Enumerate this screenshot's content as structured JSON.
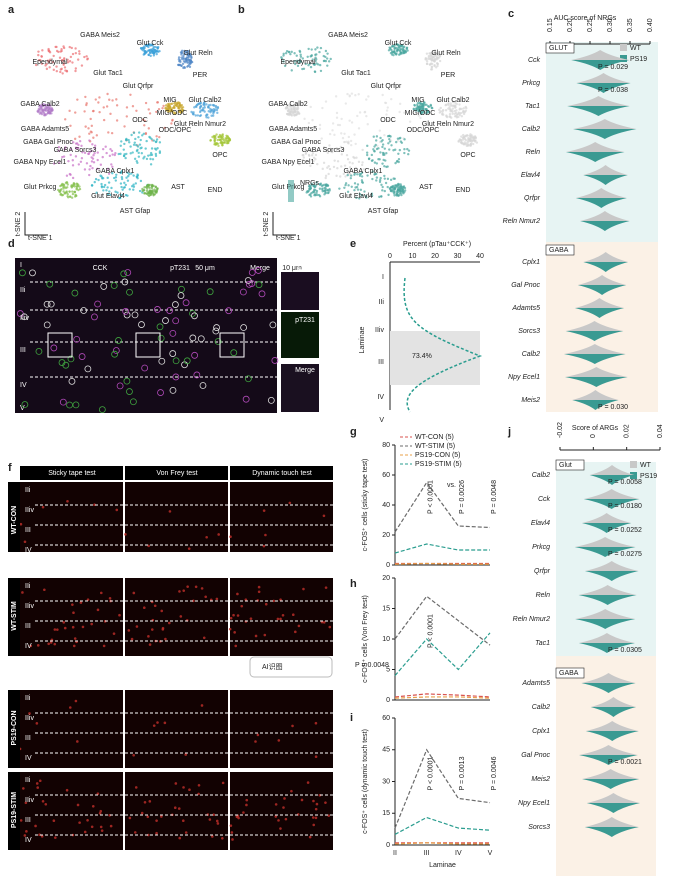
{
  "panels": {
    "a": {
      "label": "a",
      "clusters": [
        "GABA Meis2",
        "Glut Cck",
        "Ependymal",
        "Glut Reln",
        "Glut Tac1",
        "Glut Qrfpr",
        "PER",
        "MIG",
        "Glut Calb2",
        "MIG/ODC",
        "Glut Reln Nmur2",
        "ODC/OPC",
        "GABA Calb2",
        "ODC",
        "GABA Adamts5",
        "GABA Gal Pnoc",
        "GABA Sorcs3",
        "OPC",
        "GABA Npy Ecel1",
        "GABA Cplx1",
        "END",
        "Glut Prkcg",
        "Glut Elavl4",
        "AST",
        "AST Gfap"
      ],
      "axis_y": "t-SNE 2",
      "axis_x": "t-SNE 1"
    },
    "b": {
      "label": "b",
      "clusters": [
        "GABA Meis2",
        "Glut Cck",
        "Ependymal",
        "Glut Reln",
        "Glut Tac1",
        "Glut Qrfpr",
        "PER",
        "MIG",
        "Glut Calb2",
        "MIG/ODC",
        "Glut Reln Nmur2",
        "ODC/OPC",
        "GABA Calb2",
        "ODC",
        "GABA Adamts5",
        "GABA Gal Pnoc",
        "GABA Sorcs3",
        "OPC",
        "GABA Npy Ecel1",
        "GABA Cplx1",
        "END",
        "Glut Prkcg",
        "Glut Elavl4",
        "AST",
        "AST Gfap"
      ],
      "axis_y": "t-SNE 2",
      "axis_x": "t-SNE 1",
      "colorbar": "NRGs"
    },
    "c": {
      "label": "c",
      "title": "AUC score of NRGs",
      "ticks": [
        "0.15",
        "0.20",
        "0.25",
        "0.30",
        "0.35",
        "0.40"
      ],
      "legend": [
        "WT",
        "PS19"
      ],
      "groups": [
        {
          "name": "GLUT",
          "rows": [
            {
              "gene": "Cck",
              "p": "P = 0.029"
            },
            {
              "gene": "Prkcg",
              "p": "P = 0.038"
            },
            {
              "gene": "Tac1"
            },
            {
              "gene": "Calb2"
            },
            {
              "gene": "Reln"
            },
            {
              "gene": "Elavl4"
            },
            {
              "gene": "Qrfpr"
            },
            {
              "gene": "Reln Nmur2"
            }
          ]
        },
        {
          "name": "GABA",
          "rows": [
            {
              "gene": "Cplx1"
            },
            {
              "gene": "Gal Pnoc"
            },
            {
              "gene": "Adamts5"
            },
            {
              "gene": "Sorcs3"
            },
            {
              "gene": "Calb2"
            },
            {
              "gene": "Npy Ecel1"
            },
            {
              "gene": "Meis2",
              "p": "P = 0.030"
            }
          ]
        }
      ]
    },
    "d": {
      "label": "d",
      "channels": [
        "CCK",
        "pT231",
        "Merge"
      ],
      "scale": "50 μm",
      "inset_scale": "10 μm",
      "inset_channels": [
        "CCK",
        "pT231",
        "Merge"
      ],
      "laminae": [
        "I",
        "IIi",
        "IIiv",
        "III",
        "IV",
        "V"
      ]
    },
    "e": {
      "label": "e",
      "title": "Percent (pTau⁺CCK⁺)",
      "ticks": [
        "0",
        "10",
        "20",
        "30",
        "40"
      ],
      "ylabel": "Laminae",
      "laminae": [
        "I",
        "IIi",
        "IIiv",
        "III",
        "IV",
        "V"
      ],
      "annotation": "73.4%"
    },
    "f": {
      "label": "f",
      "columns": [
        "Sticky tape test",
        "Von Frey test",
        "Dynamic touch test"
      ],
      "rows": [
        "WT-CON",
        "WT-STIM",
        "PS19-CON",
        "PS19-STIM"
      ],
      "laminae": [
        "IIi",
        "IIiv",
        "III",
        "IV"
      ],
      "scale": "50 μm"
    },
    "g": {
      "label": "g"
    },
    "h": {
      "label": "h"
    },
    "i": {
      "label": "i"
    },
    "j": {
      "label": "j",
      "title": "Score of ARGs",
      "ticks": [
        "-0.02",
        "0",
        "0.02",
        "0.04"
      ],
      "legend": [
        "WT",
        "PS19"
      ],
      "groups": [
        {
          "name": "Glut",
          "rows": [
            {
              "gene": "Calb2",
              "p": "P = 0.0058"
            },
            {
              "gene": "Cck",
              "p": "P = 0.0180"
            },
            {
              "gene": "Elavl4",
              "p": "P = 0.0252"
            },
            {
              "gene": "Prkcg",
              "p": "P = 0.0275"
            },
            {
              "gene": "Qrfpr"
            },
            {
              "gene": "Reln"
            },
            {
              "gene": "Reln Nmur2"
            },
            {
              "gene": "Tac1",
              "p": "P = 0.0305"
            }
          ]
        },
        {
          "name": "GABA",
          "rows": [
            {
              "gene": "Adamts5"
            },
            {
              "gene": "Calb2"
            },
            {
              "gene": "Cplx1"
            },
            {
              "gene": "Gal Pnoc",
              "p": "P = 0.0021"
            },
            {
              "gene": "Meis2"
            },
            {
              "gene": "Npy Ecel1"
            },
            {
              "gene": "Sorcs3"
            }
          ]
        }
      ]
    }
  },
  "overlay_button": "AI识图",
  "chart_data": [
    {
      "type": "line",
      "ylabel": "c-FOS⁺ cells (sticky tape test)",
      "ylim": [
        0,
        80
      ],
      "yticks": [
        0,
        20,
        40,
        60,
        80
      ],
      "series": [
        {
          "name": "WT-CON (5)",
          "color": "#d9534f",
          "values": [
            1,
            1,
            1,
            1
          ]
        },
        {
          "name": "WT-STIM (5)",
          "color": "#6b6b6b",
          "values": [
            22,
            55,
            26,
            25
          ]
        },
        {
          "name": "PS19-CON (5)",
          "color": "#e8a04a",
          "values": [
            0.5,
            1,
            0.5,
            0.5
          ]
        },
        {
          "name": "PS19-STIM (5)",
          "color": "#2a9d8f",
          "values": [
            8,
            14,
            10,
            10
          ]
        }
      ],
      "legend_note": "vs.",
      "annotations": [
        "P < 0.0001",
        "P = 0.0026",
        "P = 0.0048"
      ]
    },
    {
      "type": "line",
      "ylabel": "c-FOS⁺ cells (Von Frey test)",
      "ylim": [
        0,
        20
      ],
      "yticks": [
        0,
        5,
        10,
        15,
        20
      ],
      "series": [
        {
          "color": "#d9534f",
          "values": [
            0.5,
            1,
            0.8,
            0.5
          ]
        },
        {
          "color": "#6b6b6b",
          "values": [
            10,
            17,
            13,
            9
          ]
        },
        {
          "color": "#e8a04a",
          "values": [
            0.3,
            0.5,
            0.5,
            0.3
          ]
        },
        {
          "color": "#2a9d8f",
          "values": [
            4,
            10,
            5,
            11
          ]
        }
      ],
      "annotations": [
        "P < 0.0001",
        "P = 0.0048"
      ]
    },
    {
      "type": "line",
      "ylabel": "c-FOS⁺ cells (dynamic touch test)",
      "ylim": [
        0,
        60
      ],
      "yticks": [
        0,
        15,
        30,
        45,
        60
      ],
      "categories": [
        "II",
        "III",
        "IV",
        "V"
      ],
      "xlabel": "Laminae",
      "series": [
        {
          "color": "#d9534f",
          "values": [
            1,
            1,
            1,
            1
          ]
        },
        {
          "color": "#6b6b6b",
          "values": [
            8,
            45,
            22,
            20
          ]
        },
        {
          "color": "#e8a04a",
          "values": [
            0.5,
            1,
            0.5,
            0.5
          ]
        },
        {
          "color": "#2a9d8f",
          "values": [
            5,
            13,
            8,
            7
          ]
        }
      ],
      "annotations": [
        "P < 0.0001",
        "P = 0.0013",
        "P = 0.0046"
      ]
    }
  ]
}
